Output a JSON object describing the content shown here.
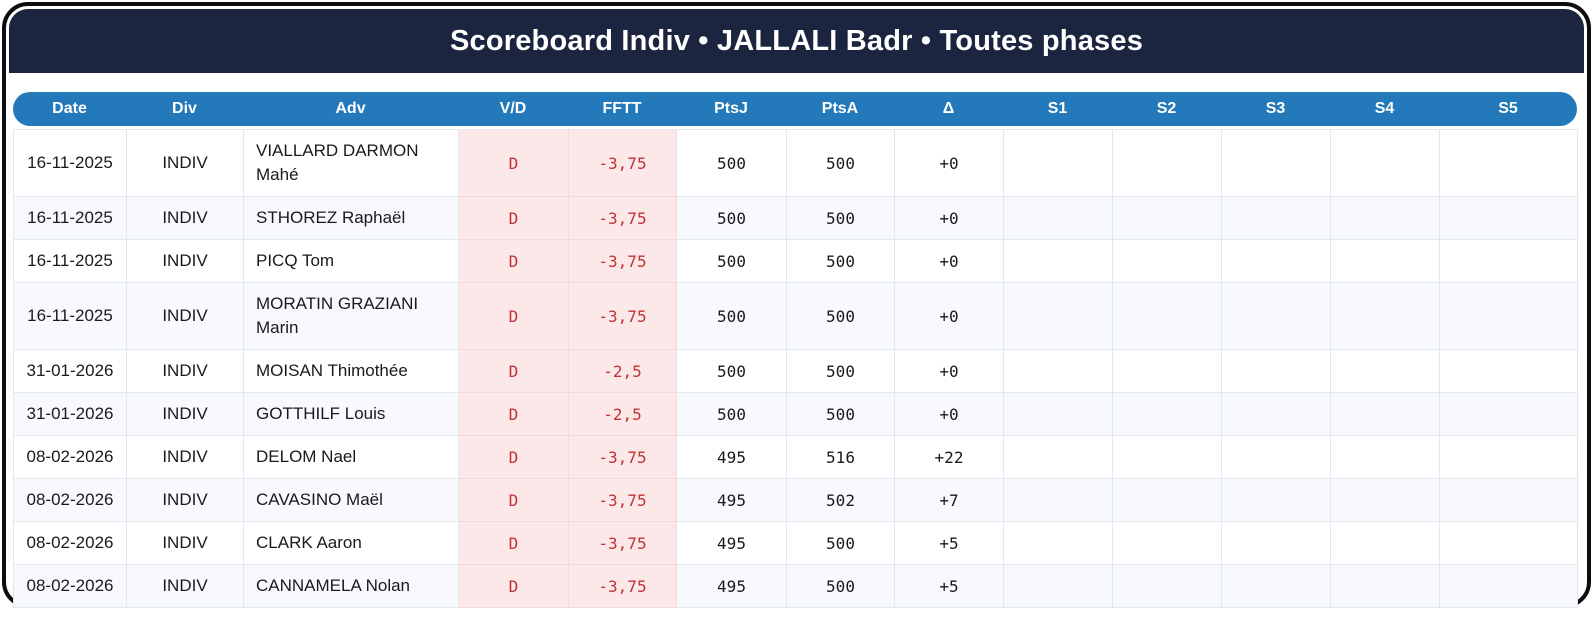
{
  "header": {
    "title": "Scoreboard Indiv • JALLALI Badr • Toutes phases"
  },
  "colors": {
    "navy": "#1b2540",
    "blue": "#2379b9",
    "pink": "#fce8e8",
    "pink_grid": "#f3dada",
    "red": "#c23232",
    "row_alt": "#f7f9fd",
    "grid": "#e2e8f2",
    "border_black": "#0d0d0d",
    "title_text": "#ffffff",
    "header_text": "#ffffff",
    "body_text": "#1a1a1a"
  },
  "table": {
    "columns": [
      {
        "key": "date",
        "label": "Date"
      },
      {
        "key": "div",
        "label": "Div"
      },
      {
        "key": "adv",
        "label": "Adv"
      },
      {
        "key": "vd",
        "label": "V/D"
      },
      {
        "key": "fftt",
        "label": "FFTT"
      },
      {
        "key": "ptsj",
        "label": "PtsJ"
      },
      {
        "key": "ptsa",
        "label": "PtsA"
      },
      {
        "key": "delta",
        "label": "Δ"
      },
      {
        "key": "s1",
        "label": "S1"
      },
      {
        "key": "s2",
        "label": "S2"
      },
      {
        "key": "s3",
        "label": "S3"
      },
      {
        "key": "s4",
        "label": "S4"
      },
      {
        "key": "s5",
        "label": "S5"
      }
    ],
    "rows": [
      {
        "date": "16-11-2025",
        "div": "INDIV",
        "adv": "VIALLARD DARMON Mahé",
        "vd": "D",
        "fftt": "-3,75",
        "ptsj": "500",
        "ptsa": "500",
        "delta": "+0",
        "s1": "",
        "s2": "",
        "s3": "",
        "s4": "",
        "s5": ""
      },
      {
        "date": "16-11-2025",
        "div": "INDIV",
        "adv": "STHOREZ Raphaël",
        "vd": "D",
        "fftt": "-3,75",
        "ptsj": "500",
        "ptsa": "500",
        "delta": "+0",
        "s1": "",
        "s2": "",
        "s3": "",
        "s4": "",
        "s5": ""
      },
      {
        "date": "16-11-2025",
        "div": "INDIV",
        "adv": "PICQ Tom",
        "vd": "D",
        "fftt": "-3,75",
        "ptsj": "500",
        "ptsa": "500",
        "delta": "+0",
        "s1": "",
        "s2": "",
        "s3": "",
        "s4": "",
        "s5": ""
      },
      {
        "date": "16-11-2025",
        "div": "INDIV",
        "adv": "MORATIN GRAZIANI Marin",
        "vd": "D",
        "fftt": "-3,75",
        "ptsj": "500",
        "ptsa": "500",
        "delta": "+0",
        "s1": "",
        "s2": "",
        "s3": "",
        "s4": "",
        "s5": ""
      },
      {
        "date": "31-01-2026",
        "div": "INDIV",
        "adv": "MOISAN Thimothée",
        "vd": "D",
        "fftt": "-2,5",
        "ptsj": "500",
        "ptsa": "500",
        "delta": "+0",
        "s1": "",
        "s2": "",
        "s3": "",
        "s4": "",
        "s5": ""
      },
      {
        "date": "31-01-2026",
        "div": "INDIV",
        "adv": "GOTTHILF Louis",
        "vd": "D",
        "fftt": "-2,5",
        "ptsj": "500",
        "ptsa": "500",
        "delta": "+0",
        "s1": "",
        "s2": "",
        "s3": "",
        "s4": "",
        "s5": ""
      },
      {
        "date": "08-02-2026",
        "div": "INDIV",
        "adv": "DELOM Nael",
        "vd": "D",
        "fftt": "-3,75",
        "ptsj": "495",
        "ptsa": "516",
        "delta": "+22",
        "s1": "",
        "s2": "",
        "s3": "",
        "s4": "",
        "s5": ""
      },
      {
        "date": "08-02-2026",
        "div": "INDIV",
        "adv": "CAVASINO Maël",
        "vd": "D",
        "fftt": "-3,75",
        "ptsj": "495",
        "ptsa": "502",
        "delta": "+7",
        "s1": "",
        "s2": "",
        "s3": "",
        "s4": "",
        "s5": ""
      },
      {
        "date": "08-02-2026",
        "div": "INDIV",
        "adv": "CLARK Aaron",
        "vd": "D",
        "fftt": "-3,75",
        "ptsj": "495",
        "ptsa": "500",
        "delta": "+5",
        "s1": "",
        "s2": "",
        "s3": "",
        "s4": "",
        "s5": ""
      },
      {
        "date": "08-02-2026",
        "div": "INDIV",
        "adv": "CANNAMELA Nolan",
        "vd": "D",
        "fftt": "-3,75",
        "ptsj": "495",
        "ptsa": "500",
        "delta": "+5",
        "s1": "",
        "s2": "",
        "s3": "",
        "s4": "",
        "s5": ""
      }
    ]
  }
}
